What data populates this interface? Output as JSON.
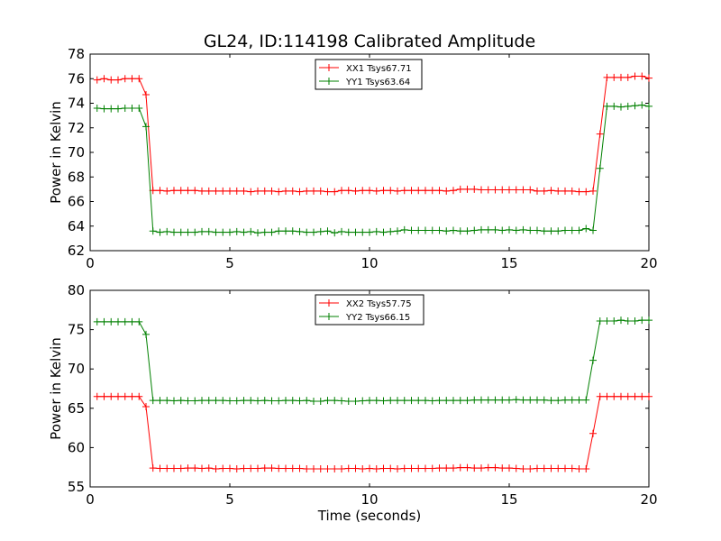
{
  "chart_data": [
    {
      "type": "line",
      "title": "GL24, ID:114198 Calibrated Amplitude",
      "xlabel": "",
      "ylabel": "Power in Kelvin",
      "xlim": [
        0,
        20
      ],
      "ylim": [
        62,
        78
      ],
      "xticks": [
        0,
        5,
        10,
        15,
        20
      ],
      "yticks": [
        62,
        64,
        66,
        68,
        70,
        72,
        74,
        76,
        78
      ],
      "legend_position": "top-center",
      "grid": false,
      "series": [
        {
          "name": "XX1 Tsys67.71",
          "color": "#ff0000",
          "x": [
            0.25,
            0.5,
            0.75,
            1.0,
            1.25,
            1.5,
            1.75,
            2.0,
            2.25,
            2.5,
            2.75,
            3.0,
            3.25,
            3.5,
            3.75,
            4.0,
            4.25,
            4.5,
            4.75,
            5.0,
            5.25,
            5.5,
            5.75,
            6.0,
            6.25,
            6.5,
            6.75,
            7.0,
            7.25,
            7.5,
            7.75,
            8.0,
            8.25,
            8.5,
            8.75,
            9.0,
            9.25,
            9.5,
            9.75,
            10.0,
            10.25,
            10.5,
            10.75,
            11.0,
            11.25,
            11.5,
            11.75,
            12.0,
            12.25,
            12.5,
            12.75,
            13.0,
            13.25,
            13.5,
            13.75,
            14.0,
            14.25,
            14.5,
            14.75,
            15.0,
            15.25,
            15.5,
            15.75,
            16.0,
            16.25,
            16.5,
            16.75,
            17.0,
            17.25,
            17.5,
            17.75,
            18.0,
            18.25,
            18.5,
            18.75,
            19.0,
            19.25,
            19.5,
            19.75,
            20.0
          ],
          "y": [
            75.9,
            76.0,
            75.9,
            75.9,
            76.0,
            76.0,
            76.0,
            74.7,
            66.9,
            66.9,
            66.85,
            66.9,
            66.9,
            66.9,
            66.9,
            66.85,
            66.85,
            66.85,
            66.85,
            66.85,
            66.85,
            66.85,
            66.8,
            66.85,
            66.85,
            66.85,
            66.8,
            66.85,
            66.85,
            66.8,
            66.85,
            66.85,
            66.85,
            66.8,
            66.8,
            66.9,
            66.9,
            66.85,
            66.9,
            66.9,
            66.85,
            66.9,
            66.9,
            66.85,
            66.9,
            66.9,
            66.9,
            66.9,
            66.9,
            66.9,
            66.85,
            66.9,
            67.0,
            67.0,
            67.0,
            66.95,
            66.95,
            66.95,
            66.95,
            66.95,
            66.95,
            66.95,
            66.95,
            66.85,
            66.85,
            66.9,
            66.85,
            66.85,
            66.85,
            66.8,
            66.8,
            66.85,
            71.5,
            76.1,
            76.1,
            76.1,
            76.1,
            76.2,
            76.2,
            76.05
          ]
        },
        {
          "name": "YY1 Tsys63.64",
          "color": "#008000",
          "x": [
            0.25,
            0.5,
            0.75,
            1.0,
            1.25,
            1.5,
            1.75,
            2.0,
            2.25,
            2.5,
            2.75,
            3.0,
            3.25,
            3.5,
            3.75,
            4.0,
            4.25,
            4.5,
            4.75,
            5.0,
            5.25,
            5.5,
            5.75,
            6.0,
            6.25,
            6.5,
            6.75,
            7.0,
            7.25,
            7.5,
            7.75,
            8.0,
            8.25,
            8.5,
            8.75,
            9.0,
            9.25,
            9.5,
            9.75,
            10.0,
            10.25,
            10.5,
            10.75,
            11.0,
            11.25,
            11.5,
            11.75,
            12.0,
            12.25,
            12.5,
            12.75,
            13.0,
            13.25,
            13.5,
            13.75,
            14.0,
            14.25,
            14.5,
            14.75,
            15.0,
            15.25,
            15.5,
            15.75,
            16.0,
            16.25,
            16.5,
            16.75,
            17.0,
            17.25,
            17.5,
            17.75,
            18.0,
            18.25,
            18.5,
            18.75,
            19.0,
            19.25,
            19.5,
            19.75,
            20.0
          ],
          "y": [
            73.6,
            73.55,
            73.55,
            73.55,
            73.6,
            73.6,
            73.6,
            72.1,
            63.6,
            63.5,
            63.55,
            63.5,
            63.5,
            63.5,
            63.5,
            63.55,
            63.55,
            63.5,
            63.5,
            63.5,
            63.55,
            63.5,
            63.55,
            63.45,
            63.5,
            63.5,
            63.6,
            63.6,
            63.6,
            63.55,
            63.5,
            63.5,
            63.55,
            63.6,
            63.45,
            63.55,
            63.5,
            63.5,
            63.5,
            63.5,
            63.55,
            63.5,
            63.55,
            63.6,
            63.7,
            63.65,
            63.65,
            63.65,
            63.65,
            63.65,
            63.6,
            63.65,
            63.6,
            63.6,
            63.65,
            63.7,
            63.7,
            63.7,
            63.65,
            63.7,
            63.65,
            63.7,
            63.65,
            63.65,
            63.6,
            63.6,
            63.6,
            63.65,
            63.65,
            63.65,
            63.8,
            63.65,
            68.7,
            73.75,
            73.75,
            73.7,
            73.75,
            73.8,
            73.85,
            73.75
          ]
        }
      ]
    },
    {
      "type": "line",
      "title": "",
      "xlabel": "Time (seconds)",
      "ylabel": "Power in Kelvin",
      "xlim": [
        0,
        20
      ],
      "ylim": [
        55,
        80
      ],
      "xticks": [
        0,
        5,
        10,
        15,
        20
      ],
      "yticks": [
        55,
        60,
        65,
        70,
        75,
        80
      ],
      "legend_position": "top-center",
      "grid": false,
      "series": [
        {
          "name": "XX2 Tsys57.75",
          "color": "#ff0000",
          "x": [
            0.25,
            0.5,
            0.75,
            1.0,
            1.25,
            1.5,
            1.75,
            2.0,
            2.25,
            2.5,
            2.75,
            3.0,
            3.25,
            3.5,
            3.75,
            4.0,
            4.25,
            4.5,
            4.75,
            5.0,
            5.25,
            5.5,
            5.75,
            6.0,
            6.25,
            6.5,
            6.75,
            7.0,
            7.25,
            7.5,
            7.75,
            8.0,
            8.25,
            8.5,
            8.75,
            9.0,
            9.25,
            9.5,
            9.75,
            10.0,
            10.25,
            10.5,
            10.75,
            11.0,
            11.25,
            11.5,
            11.75,
            12.0,
            12.25,
            12.5,
            12.75,
            13.0,
            13.25,
            13.5,
            13.75,
            14.0,
            14.25,
            14.5,
            14.75,
            15.0,
            15.25,
            15.5,
            15.75,
            16.0,
            16.25,
            16.5,
            16.75,
            17.0,
            17.25,
            17.5,
            17.75,
            18.0,
            18.25,
            18.5,
            18.75,
            19.0,
            19.25,
            19.5,
            19.75,
            20.0
          ],
          "y": [
            66.5,
            66.5,
            66.5,
            66.5,
            66.5,
            66.5,
            66.5,
            65.2,
            57.4,
            57.35,
            57.35,
            57.35,
            57.35,
            57.4,
            57.4,
            57.35,
            57.4,
            57.3,
            57.35,
            57.35,
            57.3,
            57.35,
            57.35,
            57.35,
            57.4,
            57.4,
            57.35,
            57.35,
            57.35,
            57.35,
            57.3,
            57.3,
            57.3,
            57.3,
            57.3,
            57.3,
            57.35,
            57.35,
            57.3,
            57.35,
            57.3,
            57.35,
            57.35,
            57.3,
            57.35,
            57.35,
            57.35,
            57.35,
            57.35,
            57.4,
            57.4,
            57.4,
            57.45,
            57.45,
            57.4,
            57.4,
            57.45,
            57.45,
            57.4,
            57.4,
            57.35,
            57.3,
            57.3,
            57.35,
            57.35,
            57.35,
            57.35,
            57.35,
            57.35,
            57.3,
            57.3,
            61.8,
            66.5,
            66.5,
            66.5,
            66.5,
            66.5,
            66.5,
            66.5,
            66.5
          ]
        },
        {
          "name": "YY2 Tsys66.15",
          "color": "#008000",
          "x": [
            0.25,
            0.5,
            0.75,
            1.0,
            1.25,
            1.5,
            1.75,
            2.0,
            2.25,
            2.5,
            2.75,
            3.0,
            3.25,
            3.5,
            3.75,
            4.0,
            4.25,
            4.5,
            4.75,
            5.0,
            5.25,
            5.5,
            5.75,
            6.0,
            6.25,
            6.5,
            6.75,
            7.0,
            7.25,
            7.5,
            7.75,
            8.0,
            8.25,
            8.5,
            8.75,
            9.0,
            9.25,
            9.5,
            9.75,
            10.0,
            10.25,
            10.5,
            10.75,
            11.0,
            11.25,
            11.5,
            11.75,
            12.0,
            12.25,
            12.5,
            12.75,
            13.0,
            13.25,
            13.5,
            13.75,
            14.0,
            14.25,
            14.5,
            14.75,
            15.0,
            15.25,
            15.5,
            15.75,
            16.0,
            16.25,
            16.5,
            16.75,
            17.0,
            17.25,
            17.5,
            17.75,
            18.0,
            18.25,
            18.5,
            18.75,
            19.0,
            19.25,
            19.5,
            19.75,
            20.0
          ],
          "y": [
            76.0,
            76.0,
            76.0,
            76.0,
            76.0,
            76.0,
            76.0,
            74.4,
            66.0,
            66.0,
            66.0,
            65.95,
            66.0,
            65.95,
            65.95,
            66.0,
            66.0,
            66.0,
            66.0,
            65.95,
            65.95,
            66.0,
            66.0,
            65.95,
            66.0,
            65.95,
            65.95,
            66.0,
            66.0,
            65.95,
            66.0,
            65.9,
            65.9,
            66.0,
            66.0,
            65.95,
            65.9,
            65.9,
            65.95,
            66.0,
            66.0,
            65.95,
            66.0,
            66.0,
            66.0,
            66.0,
            66.0,
            66.0,
            65.95,
            66.0,
            66.0,
            66.0,
            66.0,
            66.0,
            66.05,
            66.05,
            66.05,
            66.05,
            66.05,
            66.05,
            66.1,
            66.05,
            66.05,
            66.05,
            66.05,
            66.0,
            66.0,
            66.05,
            66.05,
            66.05,
            66.05,
            71.1,
            76.1,
            76.1,
            76.1,
            76.2,
            76.1,
            76.1,
            76.2,
            76.2
          ]
        }
      ]
    }
  ]
}
